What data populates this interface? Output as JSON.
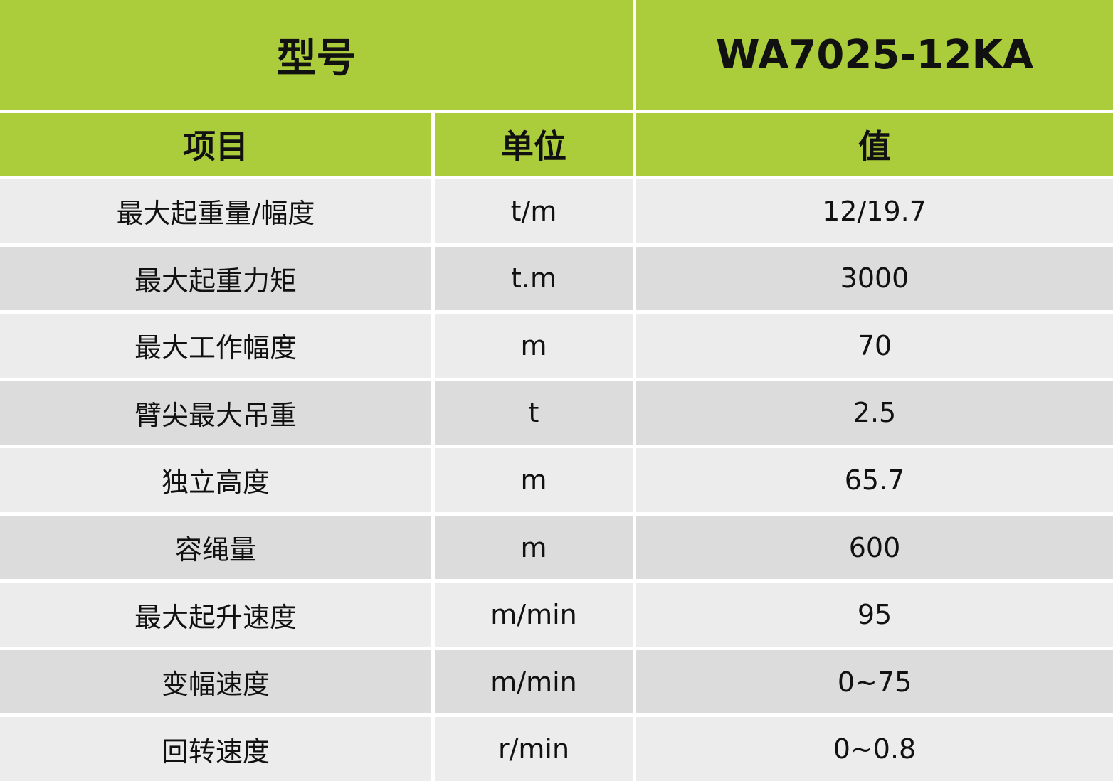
{
  "header": {
    "model_label": "型号",
    "model_value": "WA7025-12KA"
  },
  "columns": {
    "item": "项目",
    "unit": "单位",
    "value": "值"
  },
  "rows": [
    {
      "item": "最大起重量/幅度",
      "unit": "t/m",
      "value": "12/19.7"
    },
    {
      "item": "最大起重力矩",
      "unit": "t.m",
      "value": "3000"
    },
    {
      "item": "最大工作幅度",
      "unit": "m",
      "value": "70"
    },
    {
      "item": "臂尖最大吊重",
      "unit": "t",
      "value": "2.5"
    },
    {
      "item": "独立高度",
      "unit": "m",
      "value": "65.7"
    },
    {
      "item": "容绳量",
      "unit": "m",
      "value": "600"
    },
    {
      "item": "最大起升速度",
      "unit": "m/min",
      "value": "95"
    },
    {
      "item": "变幅速度",
      "unit": "m/min",
      "value": "0~75"
    },
    {
      "item": "回转速度",
      "unit": "r/min",
      "value": "0~0.8"
    }
  ],
  "colors": {
    "header": "#abcd3b",
    "row_light": "#ececec",
    "row_dark": "#dcdcdc"
  }
}
